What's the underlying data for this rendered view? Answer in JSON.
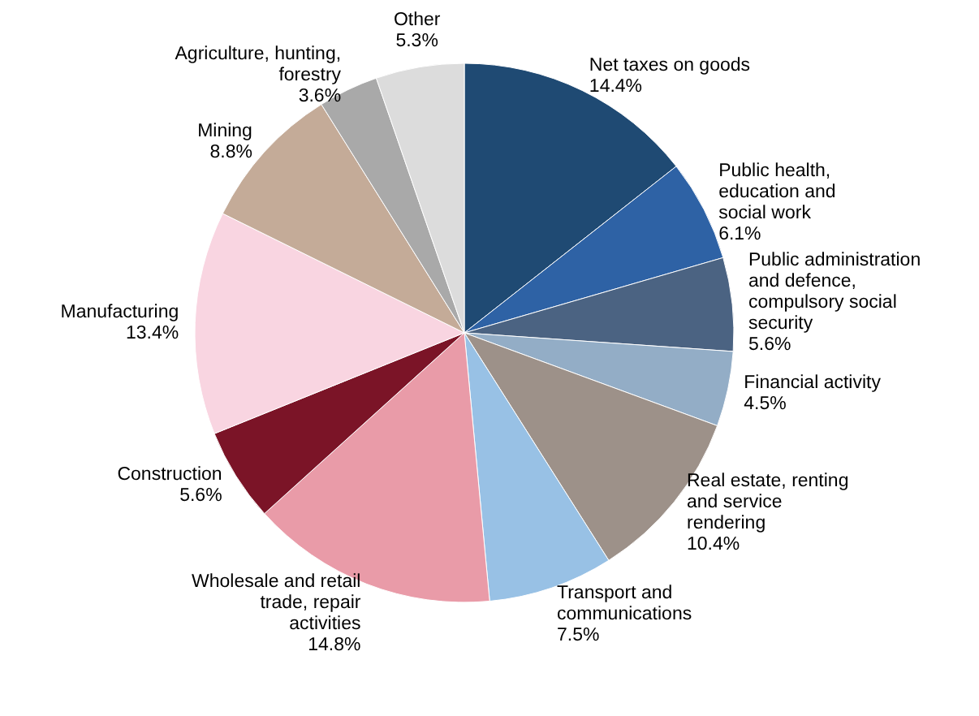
{
  "chart_data": {
    "type": "pie",
    "categories": [
      "Net taxes on goods",
      "Public health,\neducation and\nsocial work",
      "Public administration\nand defence,\ncompulsory social\nsecurity",
      "Financial activity",
      "Real estate, renting\nand service\nrendering",
      "Transport and\ncommunications",
      "Wholesale and retail\ntrade, repair\nactivities",
      "Construction",
      "Manufacturing",
      "Mining",
      "Agriculture, hunting,\nforestry",
      "Other"
    ],
    "values": [
      14.4,
      6.1,
      5.6,
      4.5,
      10.4,
      7.5,
      14.8,
      5.6,
      13.4,
      8.8,
      3.6,
      5.3
    ],
    "colors": [
      "#1f4a73",
      "#2e62a5",
      "#4b6382",
      "#93adc6",
      "#9d9189",
      "#98c1e5",
      "#e99ba8",
      "#7b1427",
      "#f9d5e1",
      "#c4ab98",
      "#a9a9a9",
      "#dcdcdc"
    ],
    "value_labels": [
      "14.4%",
      "6.1%",
      "5.6%",
      "4.5%",
      "10.4%",
      "7.5%",
      "14.8%",
      "5.6%",
      "13.4%",
      "8.8%",
      "3.6%",
      "5.3%"
    ]
  }
}
